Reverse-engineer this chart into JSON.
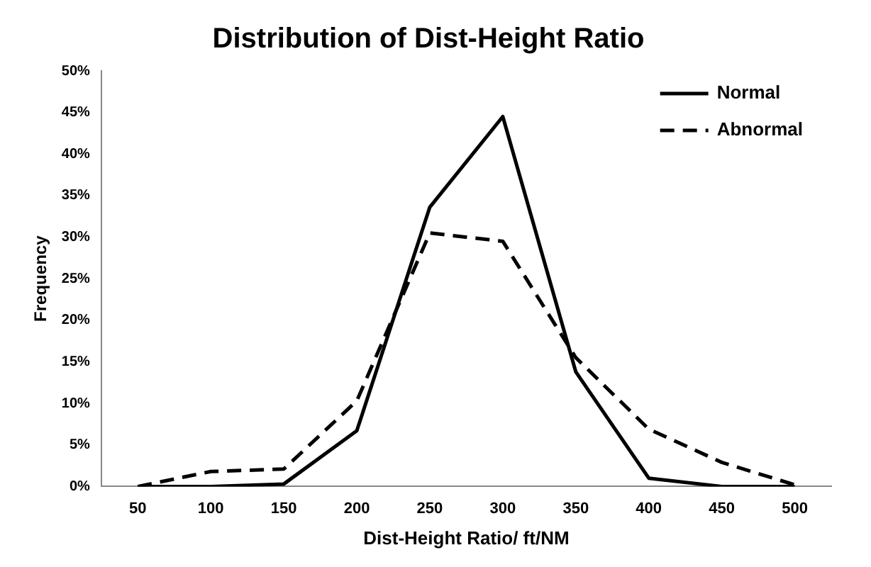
{
  "chart_data": {
    "type": "line",
    "title": "Distribution of Dist-Height Ratio",
    "xlabel": "Dist-Height Ratio/ ft/NM",
    "ylabel": "Frequency",
    "categories": [
      "50",
      "100",
      "150",
      "200",
      "250",
      "300",
      "350",
      "400",
      "450",
      "500"
    ],
    "series": [
      {
        "name": "Normal",
        "color": "#000000",
        "line_style": "solid",
        "values": [
          0,
          0,
          0.3,
          6.7,
          33.6,
          44.5,
          13.8,
          1,
          0,
          0
        ]
      },
      {
        "name": "Abnormal",
        "color": "#000000",
        "line_style": "dashed",
        "values": [
          0,
          1.8,
          2.1,
          10.3,
          30.5,
          29.5,
          15.5,
          6.9,
          2.9,
          0.2
        ]
      }
    ],
    "ylim": [
      0,
      50
    ],
    "yticks": [
      {
        "value": 0,
        "label": "0%"
      },
      {
        "value": 5,
        "label": "5%"
      },
      {
        "value": 10,
        "label": "10%"
      },
      {
        "value": 15,
        "label": "15%"
      },
      {
        "value": 20,
        "label": "20%"
      },
      {
        "value": 25,
        "label": "25%"
      },
      {
        "value": 30,
        "label": "30%"
      },
      {
        "value": 35,
        "label": "35%"
      },
      {
        "value": 40,
        "label": "40%"
      },
      {
        "value": 45,
        "label": "45%"
      },
      {
        "value": 50,
        "label": "50%"
      }
    ],
    "grid": false,
    "legend": "top right",
    "marker": "none"
  }
}
